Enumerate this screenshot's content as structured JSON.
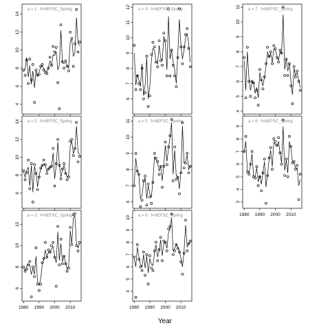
{
  "chart_data": {
    "type": "line",
    "xlabel": "Year",
    "ylabel": "",
    "grid": false,
    "x_ticks": [
      1980,
      1990,
      2000,
      2010
    ],
    "panels": [
      {
        "title": "a = 1  :  f=NEFSC_Spring",
        "ylim": [
          2.9,
          15.1
        ],
        "yticks": [
          4,
          6,
          8,
          10,
          12,
          14
        ],
        "x": [
          1980,
          1981,
          1982,
          1983,
          1984,
          1985,
          1986,
          1987,
          1988,
          1989,
          1990,
          1991,
          1992,
          1993,
          1994,
          1995,
          1996,
          1997,
          1998,
          1999,
          2000,
          2001,
          2002,
          2003,
          2004,
          2005,
          2006,
          2007,
          2008,
          2009,
          2010,
          2011,
          2012,
          2013,
          2014,
          2015,
          2016
        ],
        "points": [
          7.8,
          7.2,
          8.9,
          6.3,
          9.0,
          6.7,
          8.4,
          4.2,
          7.8,
          7.2,
          7.3,
          8.2,
          8.4,
          7.8,
          7.5,
          7.4,
          8.0,
          9.2,
          8.3,
          10.4,
          9.8,
          10.3,
          6.4,
          3.5,
          12.8,
          8.7,
          8.0,
          8.8,
          8.2,
          7.7,
          12.0,
          11.3,
          8.2,
          10.7,
          14.5,
          9.8,
          10.9
        ],
        "fit": [
          7.6,
          7.9,
          9.2,
          7.0,
          8.3,
          6.2,
          7.7,
          5.8,
          7.7,
          7.2,
          7.6,
          8.1,
          8.3,
          7.9,
          7.7,
          7.6,
          8.1,
          8.8,
          8.3,
          9.5,
          9.4,
          9.8,
          7.8,
          8.3,
          12.2,
          8.6,
          8.5,
          8.7,
          8.3,
          8.0,
          11.0,
          11.2,
          9.3,
          9.7,
          13.6,
          10.8,
          10.5
        ]
      },
      {
        "title": "a = 2  :  f=NEFSC_Spring",
        "ylim": [
          4.3,
          14.6
        ],
        "yticks": [
          6,
          8,
          10,
          12,
          14
        ],
        "x": [
          1980,
          1981,
          1982,
          1983,
          1984,
          1985,
          1986,
          1987,
          1988,
          1989,
          1990,
          1991,
          1992,
          1993,
          1994,
          1995,
          1996,
          1997,
          1998,
          1999,
          2000,
          2001,
          2002,
          2003,
          2004,
          2005,
          2006,
          2007,
          2008,
          2009,
          2010,
          2011,
          2012,
          2013,
          2014,
          2015,
          2016
        ],
        "points": [
          8.5,
          7.5,
          8.3,
          9.7,
          6.5,
          9.3,
          5.0,
          9.2,
          8.2,
          6.4,
          7.8,
          8.8,
          9.1,
          9.7,
          9.2,
          8.2,
          8.7,
          8.9,
          9.0,
          11.0,
          6.8,
          9.3,
          12.0,
          9.1,
          7.6,
          8.7,
          9.3,
          8.2,
          7.5,
          7.8,
          11.8,
          12.0,
          10.2,
          11.0,
          13.9,
          9.5,
          10.1
        ],
        "fit": [
          8.4,
          7.8,
          8.5,
          8.9,
          6.8,
          9.1,
          6.1,
          9.0,
          8.3,
          6.7,
          7.9,
          8.7,
          9.0,
          9.3,
          9.1,
          8.4,
          8.7,
          8.9,
          9.0,
          10.5,
          7.6,
          9.1,
          11.7,
          9.2,
          7.8,
          8.6,
          9.1,
          8.3,
          7.8,
          8.0,
          11.3,
          11.8,
          10.4,
          10.9,
          13.5,
          10.6,
          10.3
        ]
      },
      {
        "title": "a = 3  :  f=NEFSC_Spring",
        "ylim": [
          4.8,
          13.3
        ],
        "yticks": [
          6,
          8,
          10,
          12
        ],
        "x": [
          1980,
          1981,
          1982,
          1983,
          1984,
          1985,
          1986,
          1987,
          1988,
          1989,
          1990,
          1991,
          1992,
          1993,
          1994,
          1995,
          1996,
          1997,
          1998,
          1999,
          2000,
          2001,
          2002,
          2003,
          2004,
          2005,
          2006,
          2007,
          2008,
          2009,
          2010,
          2011,
          2012,
          2013,
          2014,
          2015,
          2016
        ],
        "points": [
          8.0,
          7.6,
          7.8,
          8.2,
          8.5,
          5.2,
          8.0,
          7.1,
          9.8,
          6.4,
          5.8,
          6.4,
          8.4,
          8.8,
          10.3,
          8.9,
          9.6,
          9.4,
          10.0,
          10.3,
          8.9,
          6.2,
          11.8,
          8.2,
          10.6,
          8.3,
          9.0,
          8.3,
          7.6,
          7.9,
          11.7,
          10.1,
          12.9,
          13.0,
          10.0,
          9.5,
          10.3
        ],
        "fit": [
          7.9,
          7.7,
          8.0,
          8.3,
          8.2,
          7.3,
          7.9,
          7.3,
          9.0,
          6.6,
          6.3,
          6.9,
          8.2,
          8.7,
          9.6,
          8.9,
          9.4,
          9.3,
          9.7,
          9.9,
          9.0,
          8.4,
          11.3,
          8.6,
          10.2,
          8.5,
          9.0,
          8.4,
          7.8,
          8.1,
          11.4,
          10.2,
          12.6,
          12.8,
          10.2,
          9.8,
          10.2
        ]
      },
      {
        "title": "a = 4  :  f=NEFSC_Spring",
        "ylim": [
          5.0,
          12.2
        ],
        "yticks": [
          6,
          7,
          8,
          9,
          10,
          11,
          12
        ],
        "x": [
          1980,
          1981,
          1982,
          1983,
          1984,
          1985,
          1986,
          1987,
          1988,
          1989,
          1990,
          1991,
          1992,
          1993,
          1994,
          1995,
          1996,
          1997,
          1998,
          1999,
          2000,
          2001,
          2002,
          2003,
          2004,
          2005,
          2006,
          2007,
          2008,
          2009,
          2010,
          2011,
          2012,
          2013,
          2014,
          2015,
          2016
        ],
        "points": [
          9.5,
          6.6,
          7.5,
          7.0,
          6.6,
          8.0,
          6.0,
          6.4,
          8.8,
          5.5,
          6.2,
          8.9,
          9.7,
          9.4,
          8.4,
          8.1,
          9.8,
          8.5,
          8.2,
          10.3,
          9.8,
          7.5,
          11.9,
          7.5,
          9.2,
          8.2,
          7.5,
          6.8,
          8.7,
          11.9,
          9.4,
          8.3,
          9.4,
          10.2,
          10.6,
          9.3,
          8.1
        ],
        "fit": [
          9.0,
          6.9,
          7.6,
          7.2,
          6.8,
          8.3,
          6.2,
          6.9,
          8.7,
          6.0,
          6.8,
          8.5,
          9.3,
          9.2,
          8.5,
          8.3,
          9.5,
          8.7,
          8.5,
          10.1,
          9.6,
          7.9,
          11.4,
          8.6,
          9.2,
          8.4,
          7.9,
          7.0,
          8.9,
          11.2,
          9.5,
          8.6,
          9.2,
          10.0,
          10.3,
          9.6,
          8.4
        ]
      },
      {
        "title": "a = 5  :  f=NEFSC_Spring",
        "ylim": [
          5.6,
          11.3
        ],
        "yticks": [
          6,
          7,
          8,
          9,
          10,
          11
        ],
        "x": [
          1980,
          1981,
          1982,
          1983,
          1984,
          1985,
          1986,
          1987,
          1988,
          1989,
          1990,
          1991,
          1992,
          1993,
          1994,
          1995,
          1996,
          1997,
          1998,
          1999,
          2000,
          2001,
          2002,
          2003,
          2004,
          2005,
          2006,
          2007,
          2008,
          2009,
          2010,
          2011,
          2012,
          2013,
          2014,
          2015,
          2016
        ],
        "points": [
          7.0,
          9.0,
          7.9,
          7.7,
          5.7,
          6.1,
          7.3,
          7.6,
          5.8,
          7.1,
          6.3,
          5.9,
          7.2,
          9.0,
          8.7,
          8.5,
          7.7,
          8.2,
          6.9,
          8.2,
          9.7,
          8.3,
          9.4,
          10.1,
          11.1,
          7.3,
          9.4,
          7.4,
          7.5,
          6.5,
          7.8,
          10.9,
          8.1,
          8.4,
          9.0,
          7.8,
          8.2
        ],
        "fit": [
          7.1,
          8.7,
          7.9,
          7.6,
          6.2,
          6.4,
          7.2,
          7.5,
          6.2,
          7.0,
          6.5,
          6.3,
          7.3,
          8.8,
          8.6,
          8.4,
          7.9,
          8.2,
          7.3,
          8.3,
          9.5,
          8.5,
          9.3,
          10.0,
          10.9,
          7.7,
          9.2,
          7.6,
          7.6,
          6.8,
          7.9,
          10.7,
          8.4,
          8.5,
          8.9,
          8.0,
          8.2
        ]
      },
      {
        "title": "a = 6  :  f=NEFSC_Spring",
        "ylim": [
          3.2,
          10.6
        ],
        "yticks": [
          4,
          5,
          6,
          7,
          8,
          9,
          10
        ],
        "x": [
          1980,
          1981,
          1982,
          1983,
          1984,
          1985,
          1986,
          1987,
          1988,
          1989,
          1990,
          1991,
          1992,
          1993,
          1994,
          1995,
          1996,
          1997,
          1998,
          1999,
          2000,
          2001,
          2002,
          2003,
          2004,
          2005,
          2006,
          2007,
          2008,
          2009,
          2010,
          2011,
          2012,
          2013,
          2014,
          2015,
          2016
        ],
        "points": [
          6.8,
          3.5,
          7.8,
          6.6,
          6.0,
          5.7,
          7.2,
          5.3,
          7.0,
          4.6,
          6.9,
          5.9,
          5.7,
          7.3,
          8.0,
          6.5,
          7.4,
          8.4,
          6.5,
          8.1,
          8.0,
          7.3,
          9.1,
          9.3,
          10.3,
          7.0,
          7.3,
          7.8,
          7.5,
          7.2,
          6.4,
          5.4,
          7.1,
          9.8,
          7.3,
          7.9,
          8.1
        ],
        "fit": [
          6.7,
          6.0,
          7.6,
          6.8,
          6.2,
          6.0,
          7.0,
          5.9,
          6.9,
          5.5,
          6.7,
          6.2,
          6.1,
          7.1,
          7.8,
          6.8,
          7.3,
          8.2,
          6.9,
          7.9,
          8.0,
          7.5,
          8.8,
          9.1,
          10.0,
          7.3,
          7.5,
          7.8,
          7.6,
          7.3,
          6.7,
          6.0,
          7.2,
          9.4,
          7.6,
          7.9,
          8.0
        ]
      },
      {
        "title": "a = 7  :  f=NEFSC_Spring",
        "ylim": [
          3.8,
          11.2
        ],
        "yticks": [
          4,
          5,
          6,
          7,
          8,
          9,
          10,
          11
        ],
        "x": [
          1980,
          1981,
          1982,
          1983,
          1984,
          1985,
          1986,
          1987,
          1988,
          1989,
          1990,
          1991,
          1992,
          1993,
          1994,
          1995,
          1996,
          1997,
          1998,
          1999,
          2000,
          2001,
          2002,
          2003,
          2004,
          2005,
          2006,
          2007,
          2008,
          2009,
          2010,
          2011,
          2012,
          2013,
          2014,
          2015,
          2016
        ],
        "points": [
          7.6,
          4.9,
          8.3,
          6.0,
          5.0,
          6.0,
          5.9,
          4.9,
          5.4,
          4.4,
          6.8,
          6.1,
          5.5,
          6.3,
          7.2,
          8.3,
          7.7,
          8.0,
          7.2,
          8.4,
          8.2,
          7.6,
          7.3,
          8.1,
          7.9,
          11.0,
          6.4,
          7.5,
          6.4,
          7.2,
          5.7,
          4.5,
          7.0,
          6.3,
          6.7,
          6.0,
          5.4
        ],
        "fit": [
          7.4,
          5.4,
          8.0,
          6.2,
          5.4,
          6.0,
          5.9,
          5.2,
          5.6,
          4.9,
          6.6,
          6.1,
          5.7,
          6.3,
          7.0,
          8.0,
          7.6,
          7.9,
          7.3,
          8.2,
          8.1,
          7.7,
          7.4,
          8.0,
          7.9,
          10.5,
          6.8,
          7.5,
          6.7,
          7.2,
          6.0,
          5.1,
          6.9,
          6.4,
          6.6,
          6.1,
          5.6
        ]
      },
      {
        "title": "a = 8  :  f=NEFSC_Spring",
        "ylim": [
          2.5,
          9.8
        ],
        "yticks": [
          3,
          4,
          5,
          6,
          7,
          8,
          9
        ],
        "x": [
          1980,
          1981,
          1982,
          1983,
          1984,
          1985,
          1986,
          1987,
          1988,
          1989,
          1990,
          1991,
          1992,
          1993,
          1994,
          1995,
          1996,
          1997,
          1998,
          1999,
          2000,
          2001,
          2002,
          2003,
          2004,
          2005,
          2006,
          2007,
          2008,
          2009,
          2010,
          2011,
          2012,
          2013,
          2014,
          2015,
          2016
        ],
        "points": [
          7.0,
          8.2,
          5.4,
          5.2,
          6.0,
          7.0,
          5.0,
          4.9,
          5.8,
          4.3,
          5.0,
          3.9,
          5.3,
          6.4,
          2.9,
          5.1,
          6.5,
          7.3,
          5.6,
          8.0,
          7.8,
          7.5,
          8.1,
          6.9,
          6.0,
          9.5,
          5.1,
          6.4,
          5.0,
          8.2,
          7.4,
          6.1,
          6.2,
          5.6,
          5.9,
          3.2,
          5.2
        ],
        "fit": [
          7.0,
          7.8,
          5.5,
          5.3,
          5.9,
          6.8,
          5.1,
          5.0,
          5.7,
          4.6,
          5.1,
          4.4,
          5.3,
          6.2,
          4.2,
          5.2,
          6.4,
          7.1,
          5.8,
          7.7,
          7.6,
          7.4,
          7.8,
          6.9,
          6.1,
          9.0,
          5.5,
          6.3,
          5.3,
          7.8,
          7.2,
          6.2,
          6.1,
          5.7,
          5.7,
          4.3,
          4.8
        ]
      }
    ]
  }
}
